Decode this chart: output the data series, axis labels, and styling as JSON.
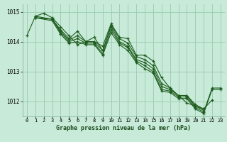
{
  "series": [
    {
      "x": [
        0,
        1,
        2,
        3,
        4,
        5,
        6,
        7,
        8,
        9,
        10,
        11,
        12,
        13,
        14,
        15,
        16,
        17,
        18,
        19,
        20,
        21,
        22
      ],
      "y": [
        1014.2,
        1014.85,
        1014.95,
        1014.8,
        1014.5,
        1014.2,
        1013.9,
        1014.0,
        1014.0,
        1013.85,
        1014.6,
        1014.15,
        1014.1,
        1013.55,
        1013.55,
        1013.35,
        1012.8,
        1012.45,
        1012.2,
        1011.95,
        1011.85,
        1011.75,
        1012.05
      ]
    },
    {
      "x": [
        1,
        3,
        4,
        5,
        6,
        7,
        8,
        9,
        10,
        11,
        12,
        13,
        14,
        15,
        16,
        17,
        18,
        19,
        20,
        21
      ],
      "y": [
        1014.85,
        1014.75,
        1014.4,
        1014.1,
        1014.35,
        1014.0,
        1014.15,
        1013.7,
        1014.55,
        1014.1,
        1013.95,
        1013.5,
        1013.4,
        1013.2,
        1012.6,
        1012.45,
        1012.2,
        1012.2,
        1011.9,
        1011.75
      ]
    },
    {
      "x": [
        1,
        3,
        4,
        5,
        6,
        7,
        8,
        9,
        10,
        11,
        12,
        13,
        14,
        15,
        16,
        17,
        18,
        19,
        20,
        21
      ],
      "y": [
        1014.8,
        1014.75,
        1014.35,
        1014.05,
        1014.2,
        1014.0,
        1014.0,
        1013.7,
        1014.5,
        1014.0,
        1013.85,
        1013.4,
        1013.3,
        1013.1,
        1012.5,
        1012.4,
        1012.2,
        1012.2,
        1011.85,
        1011.7
      ]
    },
    {
      "x": [
        1,
        3,
        4,
        5,
        6,
        7,
        8,
        9,
        10,
        11,
        12,
        13,
        14,
        15,
        16,
        17,
        18,
        19,
        20,
        21,
        22,
        23
      ],
      "y": [
        1014.8,
        1014.75,
        1014.3,
        1014.0,
        1014.1,
        1013.95,
        1013.95,
        1013.6,
        1014.4,
        1013.95,
        1013.8,
        1013.35,
        1013.2,
        1013.0,
        1012.4,
        1012.35,
        1012.15,
        1012.15,
        1011.8,
        1011.65,
        1012.45,
        1012.45
      ]
    },
    {
      "x": [
        1,
        3,
        4,
        5,
        6,
        7,
        8,
        9,
        10,
        11,
        12,
        13,
        14,
        15,
        16,
        17,
        18,
        19,
        20,
        21,
        22,
        23
      ],
      "y": [
        1014.8,
        1014.7,
        1014.25,
        1013.95,
        1014.0,
        1013.9,
        1013.9,
        1013.55,
        1014.3,
        1013.9,
        1013.7,
        1013.3,
        1013.1,
        1012.95,
        1012.35,
        1012.3,
        1012.1,
        1012.1,
        1011.75,
        1011.6,
        1012.4,
        1012.4
      ]
    }
  ],
  "line_color": "#1e5c1e",
  "marker": "+",
  "bg_color": "#c8ead8",
  "grid_color": "#9ecfb4",
  "xlabel": "Graphe pression niveau de la mer (hPa)",
  "xlim": [
    -0.5,
    23.5
  ],
  "ylim": [
    1011.5,
    1015.25
  ],
  "yticks": [
    1012,
    1013,
    1014,
    1015
  ],
  "xticks": [
    0,
    1,
    2,
    3,
    4,
    5,
    6,
    7,
    8,
    9,
    10,
    11,
    12,
    13,
    14,
    15,
    16,
    17,
    18,
    19,
    20,
    21,
    22,
    23
  ]
}
